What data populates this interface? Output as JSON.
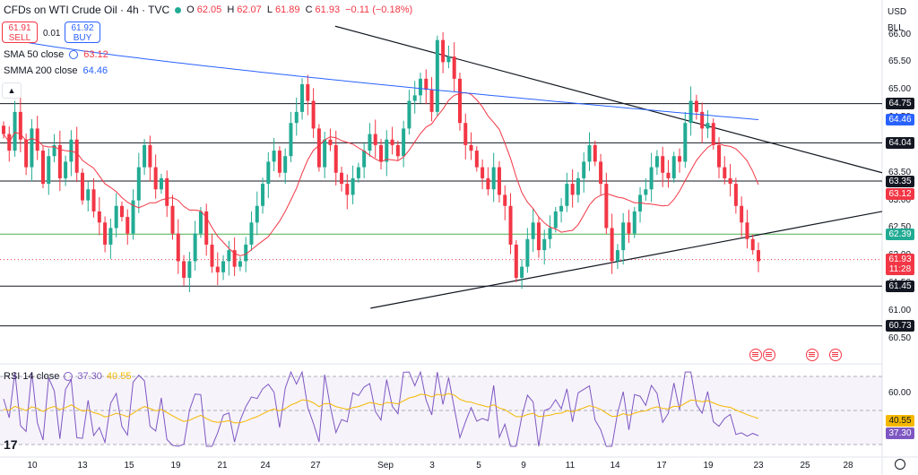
{
  "header": {
    "title": "CFDs on WTI Crude Oil · 4h · TVC",
    "open_label": "O",
    "open": "62.05",
    "high_label": "H",
    "high": "62.07",
    "low_label": "L",
    "low": "61.89",
    "close_label": "C",
    "close": "61.93",
    "change": "−0.11 (−0.18%)"
  },
  "trade": {
    "sell_price": "61.91",
    "sell_label": "SELL",
    "buy_price": "61.92",
    "buy_label": "BUY",
    "spread": "0.01"
  },
  "indicators": [
    {
      "name": "SMA 50 close",
      "value": "63.12",
      "color": "#f23645"
    },
    {
      "name": "SMMA 200 close",
      "value": "64.46",
      "color": "#2962ff"
    }
  ],
  "rsi": {
    "name": "RSI 14 close",
    "value": "37.30",
    "ma_value": "40.55",
    "color": "#7e57c2",
    "ma_color": "#f5b800"
  },
  "currency": "USD",
  "unit": "BLL",
  "price_tags": [
    {
      "text": "64.75",
      "price": 64.75,
      "bg": "#131722",
      "fg": "#ffffff"
    },
    {
      "text": "64.46",
      "price": 64.46,
      "bg": "#2962ff",
      "fg": "#ffffff"
    },
    {
      "text": "64.04",
      "price": 64.04,
      "bg": "#131722",
      "fg": "#ffffff"
    },
    {
      "text": "63.35",
      "price": 63.35,
      "bg": "#131722",
      "fg": "#ffffff"
    },
    {
      "text": "63.12",
      "price": 63.12,
      "bg": "#f23645",
      "fg": "#ffffff"
    },
    {
      "text": "62.39",
      "price": 62.39,
      "bg": "#22ab94",
      "fg": "#ffffff"
    },
    {
      "text": "61.93",
      "price": 61.93,
      "bg": "#f23645",
      "fg": "#ffffff"
    },
    {
      "text": "11:28",
      "price": 61.75,
      "bg": "#f23645",
      "fg": "#ffffff"
    },
    {
      "text": "61.45",
      "price": 61.45,
      "bg": "#131722",
      "fg": "#ffffff"
    },
    {
      "text": "60.73",
      "price": 60.73,
      "bg": "#131722",
      "fg": "#ffffff"
    }
  ],
  "rsi_tags": [
    {
      "text": "40.55",
      "bg": "#f5b800",
      "fg": "#131722"
    },
    {
      "text": "37.30",
      "bg": "#7e57c2",
      "fg": "#ffffff"
    }
  ],
  "rsi_axis_label": "60.00",
  "chart_data": {
    "type": "candlestick",
    "title": "CFDs on WTI Crude Oil · 4h · TVC",
    "y_ticks": [
      "66.00",
      "65.50",
      "65.00",
      "64.50",
      "64.00",
      "63.50",
      "63.00",
      "62.50",
      "62.00",
      "61.50",
      "61.00",
      "60.50"
    ],
    "x_ticks": [
      "10",
      "13",
      "15",
      "19",
      "21",
      "24",
      "27",
      "Sep",
      "3",
      "5",
      "9",
      "11",
      "14",
      "17",
      "19",
      "23",
      "25",
      "28"
    ],
    "ylim": [
      60.4,
      66.3
    ],
    "horizontal_levels": [
      64.75,
      64.04,
      63.35,
      61.45,
      60.73
    ],
    "support_level": 62.39,
    "descending_trendline": [
      [
        0.38,
        66.15
      ],
      [
        1.0,
        63.5
      ]
    ],
    "ascending_trendline": [
      [
        0.42,
        61.05
      ],
      [
        1.0,
        62.8
      ]
    ],
    "closes": [
      64.2,
      63.9,
      64.6,
      64.1,
      63.6,
      64.3,
      63.9,
      63.3,
      63.8,
      64.0,
      63.4,
      63.7,
      64.1,
      63.5,
      63.0,
      63.2,
      62.8,
      62.6,
      62.2,
      62.5,
      62.9,
      62.7,
      62.4,
      63.0,
      63.6,
      64.0,
      63.6,
      63.2,
      63.4,
      62.9,
      62.4,
      61.9,
      61.6,
      61.9,
      62.4,
      62.8,
      62.2,
      61.8,
      61.7,
      61.9,
      62.1,
      61.8,
      61.9,
      62.2,
      62.6,
      62.9,
      63.3,
      63.7,
      63.9,
      63.5,
      63.8,
      64.4,
      64.6,
      65.1,
      64.8,
      64.3,
      63.6,
      64.1,
      64.0,
      63.5,
      63.3,
      63.1,
      63.4,
      63.6,
      63.9,
      64.2,
      64.0,
      63.7,
      64.1,
      64.0,
      63.8,
      64.3,
      64.8,
      64.9,
      65.2,
      65.0,
      64.6,
      65.9,
      65.5,
      65.6,
      65.2,
      64.4,
      64.0,
      63.9,
      63.6,
      63.4,
      63.2,
      63.6,
      63.1,
      62.9,
      62.2,
      61.6,
      61.8,
      62.3,
      62.6,
      62.1,
      62.3,
      62.5,
      62.8,
      62.9,
      63.3,
      63.1,
      63.4,
      63.7,
      64.0,
      63.7,
      63.3,
      62.5,
      61.9,
      62.1,
      62.6,
      62.4,
      62.8,
      63.1,
      63.2,
      63.6,
      63.8,
      63.5,
      63.4,
      63.8,
      63.7,
      64.4,
      64.8,
      64.6,
      64.3,
      64.4,
      64.0,
      63.6,
      63.4,
      63.3,
      62.9,
      62.6,
      62.3,
      62.1,
      61.9
    ]
  }
}
